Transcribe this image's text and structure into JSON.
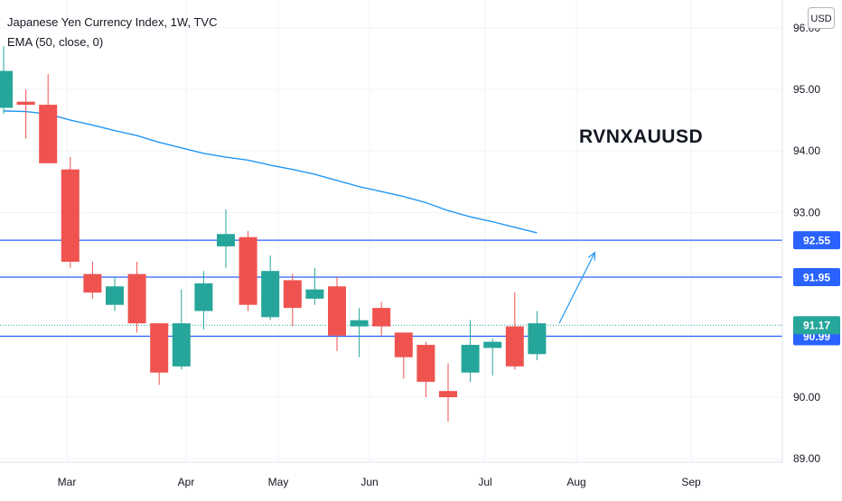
{
  "legend": {
    "title": "Japanese Yen Currency Index, 1W, TVC",
    "indicator": "EMA (50, close, 0)"
  },
  "currency_button": "USD",
  "annotation": "RVNXAUUSD",
  "colors": {
    "up": "#26a69a",
    "down": "#ef5350",
    "ema": "#2196f3",
    "level_line": "#2962ff",
    "last_price_line": "#26a69a",
    "grid": "#f0f3fa",
    "axis_text": "#131722"
  },
  "chart_data": {
    "type": "candlestick",
    "title": "Japanese Yen Currency Index, 1W, TVC",
    "x_tick_labels": [
      "Mar",
      "Apr",
      "May",
      "Jun",
      "Jul",
      "Aug",
      "Sep"
    ],
    "y_tick_labels": [
      "89.00",
      "90.00",
      "91.00",
      "92.00",
      "93.00",
      "94.00",
      "95.00",
      "96.00"
    ],
    "ylim": [
      88.95,
      96.0
    ],
    "grid": true,
    "candles": [
      {
        "o": 94.7,
        "h": 95.7,
        "l": 94.6,
        "c": 95.3
      },
      {
        "o": 94.8,
        "h": 95.0,
        "l": 94.2,
        "c": 94.75
      },
      {
        "o": 94.75,
        "h": 95.25,
        "l": 93.8,
        "c": 93.8
      },
      {
        "o": 93.7,
        "h": 93.9,
        "l": 92.1,
        "c": 92.2
      },
      {
        "o": 92.0,
        "h": 92.2,
        "l": 91.6,
        "c": 91.7
      },
      {
        "o": 91.5,
        "h": 91.95,
        "l": 91.4,
        "c": 91.8
      },
      {
        "o": 92.0,
        "h": 92.2,
        "l": 91.05,
        "c": 91.2
      },
      {
        "o": 91.2,
        "h": 91.2,
        "l": 90.2,
        "c": 90.4
      },
      {
        "o": 90.5,
        "h": 91.75,
        "l": 90.45,
        "c": 91.2
      },
      {
        "o": 91.4,
        "h": 92.05,
        "l": 91.1,
        "c": 91.85
      },
      {
        "o": 92.45,
        "h": 93.05,
        "l": 92.1,
        "c": 92.65
      },
      {
        "o": 92.6,
        "h": 92.7,
        "l": 91.4,
        "c": 91.5
      },
      {
        "o": 91.3,
        "h": 92.3,
        "l": 91.25,
        "c": 92.05
      },
      {
        "o": 91.9,
        "h": 92.0,
        "l": 91.15,
        "c": 91.45
      },
      {
        "o": 91.6,
        "h": 92.1,
        "l": 91.5,
        "c": 91.75
      },
      {
        "o": 91.8,
        "h": 91.95,
        "l": 90.75,
        "c": 91.0
      },
      {
        "o": 91.15,
        "h": 91.45,
        "l": 90.65,
        "c": 91.25
      },
      {
        "o": 91.45,
        "h": 91.55,
        "l": 91.0,
        "c": 91.15
      },
      {
        "o": 91.05,
        "h": 91.05,
        "l": 90.3,
        "c": 90.65
      },
      {
        "o": 90.85,
        "h": 90.9,
        "l": 90.0,
        "c": 90.25
      },
      {
        "o": 90.1,
        "h": 90.55,
        "l": 89.6,
        "c": 90.0
      },
      {
        "o": 90.4,
        "h": 91.25,
        "l": 90.25,
        "c": 90.85
      },
      {
        "o": 90.8,
        "h": 90.95,
        "l": 90.35,
        "c": 90.9
      },
      {
        "o": 91.15,
        "h": 91.7,
        "l": 90.45,
        "c": 90.5
      },
      {
        "o": 90.7,
        "h": 91.4,
        "l": 90.6,
        "c": 91.2
      }
    ],
    "ema_series": {
      "name": "EMA (50, close, 0)",
      "values": [
        94.65,
        94.64,
        94.6,
        94.5,
        94.42,
        94.33,
        94.25,
        94.14,
        94.05,
        93.96,
        93.9,
        93.85,
        93.77,
        93.7,
        93.62,
        93.52,
        93.42,
        93.34,
        93.26,
        93.16,
        93.03,
        92.93,
        92.85,
        92.76,
        92.67
      ]
    },
    "price_levels": [
      {
        "value": 92.55,
        "label": "92.55"
      },
      {
        "value": 91.95,
        "label": "91.95"
      },
      {
        "value": 90.99,
        "label": "90.99"
      }
    ],
    "last_price": {
      "value": 91.17,
      "label": "91.17"
    },
    "arrow": {
      "from_index": 25.0,
      "from_value": 91.2,
      "to_index": 26.6,
      "to_value": 92.35
    }
  }
}
